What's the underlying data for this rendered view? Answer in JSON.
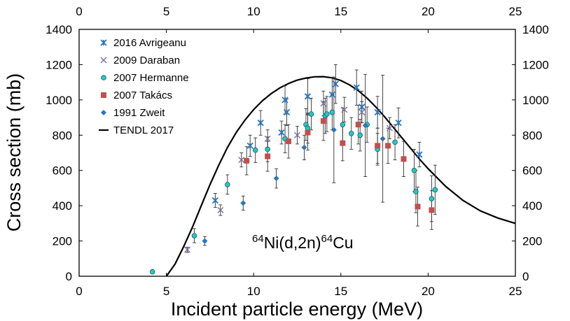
{
  "chart_data": {
    "type": "scatter",
    "title": "",
    "xlabel": "Incident particle energy (MeV)",
    "ylabel": "Cross section (mb)",
    "xlim": [
      0,
      25
    ],
    "ylim": [
      0,
      1400
    ],
    "x_ticks": [
      "0",
      "5",
      "10",
      "15",
      "20",
      "25"
    ],
    "y_ticks": [
      "0",
      "200",
      "400",
      "600",
      "800",
      "1000",
      "1200",
      "1400"
    ],
    "grid": false,
    "legend_position": "top-left",
    "annotation": {
      "sup1": "64",
      "main1": "Ni(d,2n)",
      "sup2": "64",
      "main2": "Cu"
    },
    "series": [
      {
        "name": "2016 Avrigeanu",
        "marker": "asterisk",
        "color": "#2e75b6",
        "x": [
          7.8,
          9.8,
          10.4,
          11.6,
          11.8,
          11.9,
          13.1,
          14.5,
          14.7,
          15.9,
          16.2,
          17.1,
          18.3,
          19.5
        ],
        "y": [
          430,
          740,
          870,
          815,
          1000,
          930,
          1020,
          1030,
          1090,
          1070,
          960,
          930,
          870,
          690
        ],
        "err": [
          40,
          60,
          70,
          65,
          80,
          75,
          100,
          95,
          110,
          100,
          90,
          90,
          85,
          70
        ]
      },
      {
        "name": "2009 Daraban",
        "marker": "x",
        "color": "#7f6f9f",
        "x": [
          6.2,
          8.1,
          9.3,
          10.8,
          12.5,
          14.0,
          15.2,
          16.2,
          17.8
        ],
        "y": [
          150,
          375,
          660,
          780,
          800,
          980,
          945,
          930,
          840
        ],
        "err": [
          15,
          30,
          40,
          50,
          50,
          70,
          70,
          60,
          60
        ]
      },
      {
        "name": "2007 Hermanne",
        "marker": "circle",
        "color": "#26c6c6",
        "x": [
          4.2,
          6.6,
          8.5,
          10.1,
          10.8,
          11.8,
          13.0,
          13.1,
          13.3,
          14.1,
          14.2,
          14.5,
          15.1,
          15.6,
          16.1,
          16.5,
          17.1,
          18.1,
          19.2,
          19.3,
          20.2,
          20.4
        ],
        "y": [
          25,
          230,
          520,
          715,
          720,
          780,
          860,
          840,
          920,
          910,
          920,
          930,
          860,
          810,
          800,
          860,
          720,
          760,
          600,
          480,
          440,
          490
        ],
        "err": [
          10,
          40,
          55,
          70,
          70,
          80,
          90,
          85,
          90,
          100,
          100,
          100,
          95,
          90,
          90,
          100,
          90,
          100,
          120,
          120,
          130,
          140
        ]
      },
      {
        "name": "2007 Takács",
        "marker": "square",
        "color": "#c0504d",
        "x": [
          9.6,
          10.8,
          12.0,
          13.1,
          14.0,
          15.1,
          16.0,
          17.1,
          17.7,
          18.6,
          19.4,
          20.2
        ],
        "y": [
          655,
          680,
          765,
          815,
          880,
          755,
          860,
          740,
          740,
          665,
          395,
          375
        ],
        "err": [
          80,
          85,
          95,
          100,
          110,
          100,
          110,
          100,
          100,
          100,
          110,
          110
        ]
      },
      {
        "name": "1991 Zweit",
        "marker": "diamond",
        "color": "#2e75b6",
        "x": [
          7.2,
          9.4,
          11.3,
          12.9,
          14.6,
          16.4,
          17.4
        ],
        "y": [
          200,
          415,
          555,
          730,
          830,
          855,
          780
        ],
        "err": [
          25,
          40,
          55,
          70,
          300,
          290,
          360
        ]
      }
    ],
    "curve": {
      "name": "TENDL 2017",
      "color": "#000000",
      "x": [
        5.0,
        5.5,
        6.0,
        6.5,
        7.0,
        7.5,
        8.0,
        8.5,
        9.0,
        9.5,
        10.0,
        10.5,
        11.0,
        11.5,
        12.0,
        12.5,
        13.0,
        13.5,
        14.0,
        14.5,
        15.0,
        15.5,
        16.0,
        16.5,
        17.0,
        17.5,
        18.0,
        18.5,
        19.0,
        19.5,
        20.0,
        21.0,
        22.0,
        23.0,
        24.0,
        25.0
      ],
      "y": [
        0,
        70,
        170,
        280,
        400,
        520,
        630,
        730,
        815,
        885,
        945,
        995,
        1035,
        1068,
        1093,
        1112,
        1124,
        1131,
        1132,
        1125,
        1110,
        1085,
        1052,
        1010,
        960,
        905,
        845,
        785,
        725,
        665,
        610,
        510,
        430,
        370,
        330,
        300
      ]
    }
  }
}
